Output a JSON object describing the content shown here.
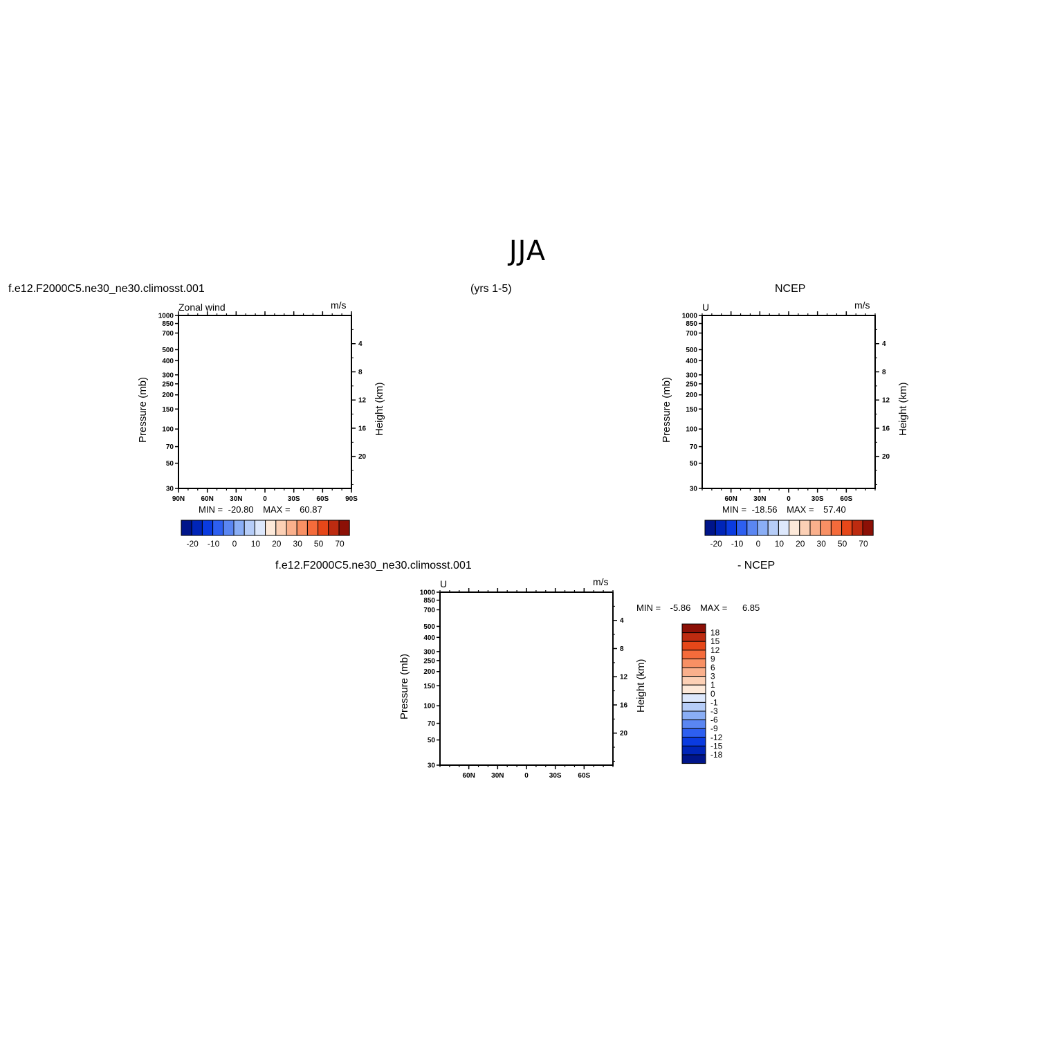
{
  "page_title": "JJA",
  "colors": {
    "positive": [
      "#fde9d9",
      "#fcd0b5",
      "#fab08c",
      "#f89064",
      "#f56b3b",
      "#e64719",
      "#bd2b10",
      "#8c1006"
    ],
    "negative": [
      "#00158a",
      "#0025b8",
      "#0a3be0",
      "#2d5ff0",
      "#5a86f2",
      "#8aaef5",
      "#b6cdf8",
      "#dde8fc"
    ]
  },
  "panels": {
    "model": {
      "case_label": "f.e12.F2000C5.ne30_ne30.climosst.001",
      "years_label": "(yrs 1-5)",
      "var_label": "Zonal wind",
      "units": "m/s",
      "ylabel_left": "Pressure (mb)",
      "ylabel_right": "Height (km)",
      "min_label": "MIN =",
      "min_value": "-20.80",
      "max_label": "MAX =",
      "max_value": "60.87"
    },
    "obs": {
      "case_label": "NCEP",
      "var_label": "U",
      "units": "m/s",
      "ylabel_left": "Pressure (mb)",
      "ylabel_right": "Height (km)",
      "min_label": "MIN =",
      "min_value": "-18.56",
      "max_label": "MAX =",
      "max_value": "57.40"
    },
    "diff": {
      "case_label": "f.e12.F2000C5.ne30_ne30.climosst.001",
      "minus_label": "- NCEP",
      "var_label": "U",
      "units": "m/s",
      "ylabel_left": "Pressure (mb)",
      "ylabel_right": "Height (km)",
      "min_label": "MIN =",
      "min_value": "-5.86",
      "max_label": "MAX =",
      "max_value": "6.85"
    }
  },
  "chart_data": [
    {
      "type": "heatmap",
      "name": "model",
      "x_ticks": [
        "90N",
        "60N",
        "30N",
        "0",
        "30S",
        "60S",
        "90S"
      ],
      "x_tick_values": [
        90,
        60,
        30,
        0,
        -30,
        -60,
        -90
      ],
      "xlim": [
        90,
        -90
      ],
      "y_ticks": [
        "30",
        "50",
        "70",
        "100",
        "150",
        "200",
        "250",
        "300",
        "400",
        "500",
        "700",
        "850",
        "1000"
      ],
      "y_tick_values": [
        30,
        50,
        70,
        100,
        150,
        200,
        250,
        300,
        400,
        500,
        700,
        850,
        1000
      ],
      "ylim": [
        1000,
        30
      ],
      "y_scale": "log",
      "right_axis_ticks": [
        "20",
        "16",
        "12",
        "8",
        "4"
      ],
      "right_axis_values": [
        20,
        16,
        12,
        8,
        4
      ],
      "colorbar_labels": [
        "-20",
        "-10",
        "0",
        "10",
        "20",
        "30",
        "50",
        "70"
      ],
      "contour_levels": [
        -25,
        -20,
        -15,
        -10,
        -5,
        0,
        5,
        10,
        15,
        20,
        25,
        30,
        40,
        50,
        60,
        70,
        80
      ],
      "min": -20.8,
      "max": 60.87
    },
    {
      "type": "heatmap",
      "name": "obs",
      "x_ticks": [
        "60N",
        "30N",
        "0",
        "30S",
        "60S"
      ],
      "x_tick_values": [
        60,
        30,
        0,
        -30,
        -60
      ],
      "xlim": [
        90,
        -90
      ],
      "y_ticks": [
        "30",
        "50",
        "70",
        "100",
        "150",
        "200",
        "250",
        "300",
        "400",
        "500",
        "700",
        "850",
        "1000"
      ],
      "y_tick_values": [
        30,
        50,
        70,
        100,
        150,
        200,
        250,
        300,
        400,
        500,
        700,
        850,
        1000
      ],
      "ylim": [
        1000,
        30
      ],
      "y_scale": "log",
      "right_axis_ticks": [
        "20",
        "16",
        "12",
        "8",
        "4"
      ],
      "right_axis_values": [
        20,
        16,
        12,
        8,
        4
      ],
      "colorbar_labels": [
        "-20",
        "-10",
        "0",
        "10",
        "20",
        "30",
        "50",
        "70"
      ],
      "contour_levels": [
        -25,
        -20,
        -15,
        -10,
        -5,
        0,
        5,
        10,
        15,
        20,
        25,
        30,
        40,
        50,
        60,
        70,
        80
      ],
      "min": -18.56,
      "max": 57.4
    },
    {
      "type": "heatmap",
      "name": "diff",
      "x_ticks": [
        "60N",
        "30N",
        "0",
        "30S",
        "60S"
      ],
      "x_tick_values": [
        60,
        30,
        0,
        -30,
        -60
      ],
      "xlim": [
        90,
        -90
      ],
      "y_ticks": [
        "30",
        "50",
        "70",
        "100",
        "150",
        "200",
        "250",
        "300",
        "400",
        "500",
        "700",
        "850",
        "1000"
      ],
      "y_tick_values": [
        30,
        50,
        70,
        100,
        150,
        200,
        250,
        300,
        400,
        500,
        700,
        850,
        1000
      ],
      "ylim": [
        1000,
        30
      ],
      "y_scale": "log",
      "right_axis_ticks": [
        "20",
        "16",
        "12",
        "8",
        "4"
      ],
      "right_axis_values": [
        20,
        16,
        12,
        8,
        4
      ],
      "colorbar_labels": [
        "18",
        "15",
        "12",
        "9",
        "6",
        "3",
        "1",
        "0",
        "-1",
        "-3",
        "-6",
        "-9",
        "-12",
        "-15",
        "-18"
      ],
      "min": -5.86,
      "max": 6.85
    }
  ]
}
